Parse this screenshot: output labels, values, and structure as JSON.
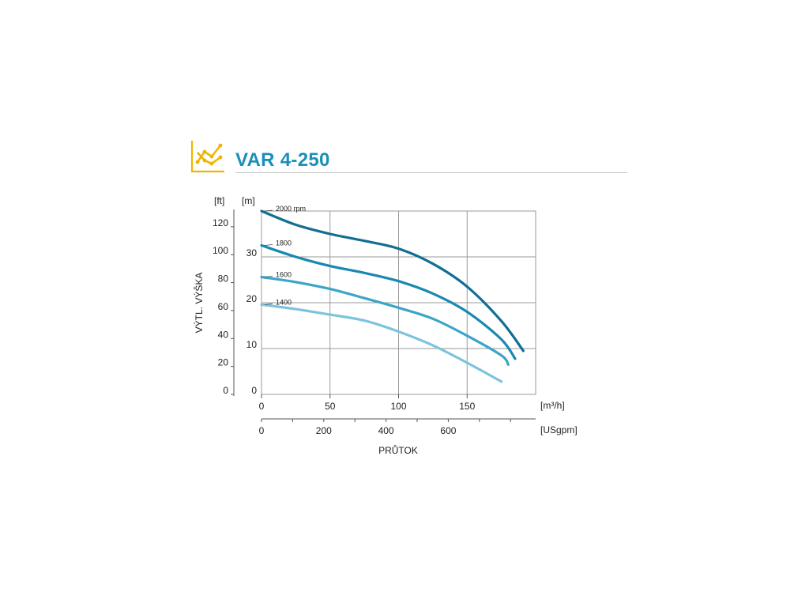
{
  "header": {
    "title": "VAR 4-250",
    "icon": "line-chart-icon",
    "icon_color": "#f0b400"
  },
  "chart_data": {
    "type": "line",
    "title": "VAR 4-250",
    "xlabel": "PRŮTOK",
    "ylabel": "VÝTL. VÝŠKA",
    "x_unit_primary": "[m³/h]",
    "x_unit_secondary": "[USgpm]",
    "y_unit_primary": "[m]",
    "y_unit_secondary": "[ft]",
    "xlim": [
      0,
      200
    ],
    "ylim": [
      0,
      40
    ],
    "x_ticks": [
      0,
      50,
      100,
      150
    ],
    "x2_ticks": [
      0,
      200,
      400,
      600
    ],
    "y_ticks": [
      0,
      10,
      20,
      30
    ],
    "y2_ticks": [
      0,
      20,
      40,
      60,
      80,
      100,
      120
    ],
    "grid": true,
    "series": [
      {
        "name": "2000 rpm",
        "color": "#126e93",
        "x": [
          0,
          25,
          50,
          75,
          100,
          125,
          150,
          175,
          191
        ],
        "y": [
          40,
          37,
          35,
          33.5,
          31.8,
          28.5,
          23.5,
          16,
          9.5
        ]
      },
      {
        "name": "1800",
        "color": "#1a88b2",
        "x": [
          0,
          25,
          50,
          75,
          100,
          125,
          150,
          175,
          185
        ],
        "y": [
          32.5,
          30,
          28,
          26.5,
          24.7,
          22,
          18,
          12,
          7.8
        ]
      },
      {
        "name": "1600",
        "color": "#3ba5c8",
        "x": [
          0,
          25,
          50,
          75,
          100,
          125,
          150,
          175,
          180
        ],
        "y": [
          25.6,
          24.5,
          23,
          21,
          18.9,
          16.5,
          12.8,
          8.5,
          6.5
        ]
      },
      {
        "name": "1400",
        "color": "#7dc3dd",
        "x": [
          0,
          25,
          50,
          75,
          100,
          125,
          150,
          175
        ],
        "y": [
          19.6,
          18.6,
          17.4,
          16.1,
          13.7,
          10.7,
          6.9,
          2.8
        ]
      }
    ]
  }
}
